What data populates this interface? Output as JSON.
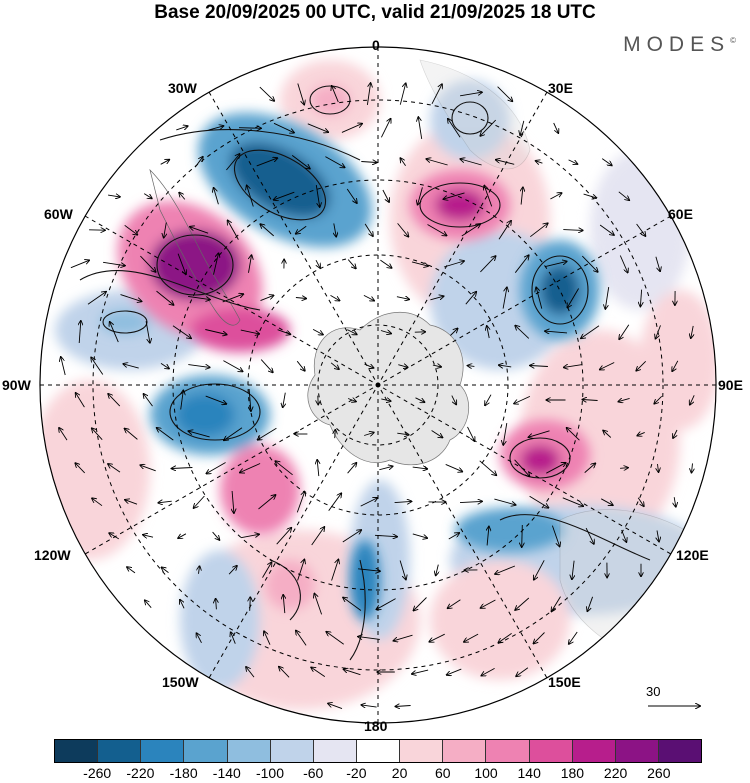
{
  "title": "Base 20/09/2025 00 UTC, valid 21/09/2025 18 UTC",
  "brand": {
    "name": "MODES",
    "mark": "©"
  },
  "meridian_labels": {
    "m0": "0",
    "m30e": "30E",
    "m60e": "60E",
    "m90e": "90E",
    "m120e": "120E",
    "m150e": "150E",
    "m180": "180",
    "m150w": "150W",
    "m120w": "120W",
    "m90w": "90W",
    "m60w": "60W",
    "m30w": "30W"
  },
  "reference_vector": {
    "value": "30"
  },
  "colorbar": {
    "ticks": [
      "-260",
      "-220",
      "-180",
      "-140",
      "-100",
      "-60",
      "-20",
      "20",
      "60",
      "100",
      "140",
      "180",
      "220",
      "260"
    ],
    "colors": [
      "#0d3b5c",
      "#135f8f",
      "#2b84bd",
      "#5aa3cf",
      "#8fbedf",
      "#c0d3ea",
      "#e5e5f2",
      "#ffffff",
      "#f9d5da",
      "#f5aec5",
      "#ee82b2",
      "#dd4f9c",
      "#b71e8c",
      "#8c1385",
      "#5a0f73"
    ]
  },
  "colors": {
    "land": "#e6e6e6",
    "grid": "#000000",
    "contour": "#111111"
  }
}
